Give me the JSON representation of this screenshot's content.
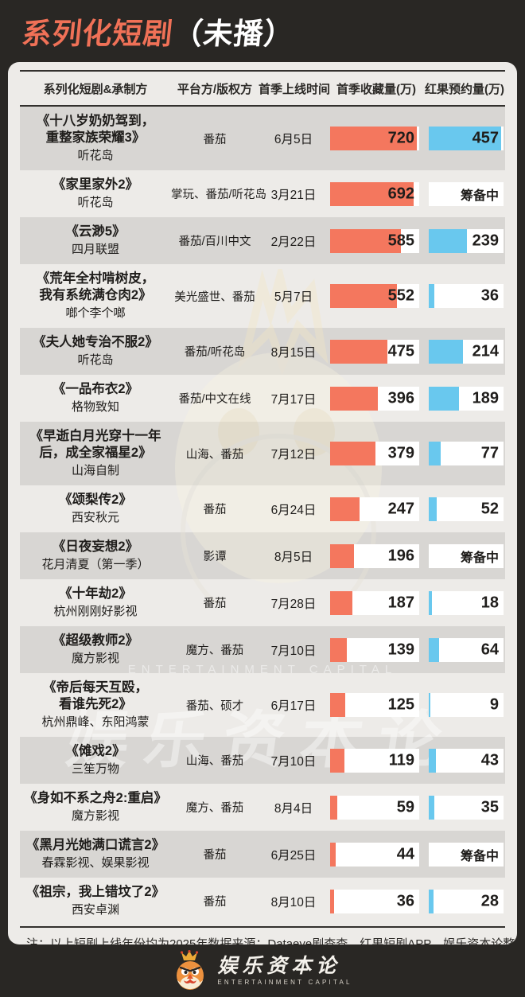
{
  "header": {
    "title_highlight": "系列化短剧",
    "title_rest": "（未播）"
  },
  "table": {
    "columns": [
      "系列化短剧&承制方",
      "平台方/版权方",
      "首季上线时间",
      "首季收藏量(万)",
      "红果预约量(万)"
    ],
    "rows": [
      {
        "title_lines": [
          "《十八岁奶奶驾到，",
          "重整家族荣耀3》"
        ],
        "producer": "听花岛",
        "platform": "番茄",
        "date": "6月5日",
        "collection": 720,
        "reservation": 457
      },
      {
        "title_lines": [
          "《家里家外2》"
        ],
        "producer": "听花岛",
        "platform": "掌玩、番茄/听花岛",
        "date": "3月21日",
        "collection": 692,
        "reservation": "筹备中"
      },
      {
        "title_lines": [
          "《云渺5》"
        ],
        "producer": "四月联盟",
        "platform": "番茄/百川中文",
        "date": "2月22日",
        "collection": 585,
        "reservation": 239
      },
      {
        "title_lines": [
          "《荒年全村啃树皮，",
          "我有系统满仓肉2》"
        ],
        "producer": "啷个李个啷",
        "platform": "美光盛世、番茄",
        "date": "5月7日",
        "collection": 552,
        "reservation": 36
      },
      {
        "title_lines": [
          "《夫人她专治不服2》"
        ],
        "producer": "听花岛",
        "platform": "番茄/听花岛",
        "date": "8月15日",
        "collection": 475,
        "reservation": 214
      },
      {
        "title_lines": [
          "《一品布衣2》"
        ],
        "producer": "格物致知",
        "platform": "番茄/中文在线",
        "date": "7月17日",
        "collection": 396,
        "reservation": 189
      },
      {
        "title_lines": [
          "《早逝白月光穿十一年",
          "后，成全家福星2》"
        ],
        "producer": "山海自制",
        "platform": "山海、番茄",
        "date": "7月12日",
        "collection": 379,
        "reservation": 77
      },
      {
        "title_lines": [
          "《颂梨传2》"
        ],
        "producer": "西安秋元",
        "platform": "番茄",
        "date": "6月24日",
        "collection": 247,
        "reservation": 52
      },
      {
        "title_lines": [
          "《日夜妄想2》"
        ],
        "producer": "花月清夏（第一季）",
        "platform": "影谭",
        "date": "8月5日",
        "collection": 196,
        "reservation": "筹备中"
      },
      {
        "title_lines": [
          "《十年劫2》"
        ],
        "producer": "杭州刚刚好影视",
        "platform": "番茄",
        "date": "7月28日",
        "collection": 187,
        "reservation": 18
      },
      {
        "title_lines": [
          "《超级教师2》"
        ],
        "producer": "魔方影视",
        "platform": "魔方、番茄",
        "date": "7月10日",
        "collection": 139,
        "reservation": 64
      },
      {
        "title_lines": [
          "《帝后每天互殴，",
          "看谁先死2》"
        ],
        "producer": "杭州鼎峰、东阳鸿蒙",
        "platform": "番茄、硕才",
        "date": "6月17日",
        "collection": 125,
        "reservation": 9
      },
      {
        "title_lines": [
          "《傩戏2》"
        ],
        "producer": "三笙万物",
        "platform": "山海、番茄",
        "date": "7月10日",
        "collection": 119,
        "reservation": 43
      },
      {
        "title_lines": [
          "《身如不系之舟2:重启》"
        ],
        "producer": "魔方影视",
        "platform": "魔方、番茄",
        "date": "8月4日",
        "collection": 59,
        "reservation": 35
      },
      {
        "title_lines": [
          "《黑月光她满口谎言2》"
        ],
        "producer": "春霖影视、娱果影视",
        "platform": "番茄",
        "date": "6月25日",
        "collection": 44,
        "reservation": "筹备中"
      },
      {
        "title_lines": [
          "《祖宗，我上错坟了2》"
        ],
        "producer": "西安卓渊",
        "platform": "番茄",
        "date": "8月10日",
        "collection": 36,
        "reservation": 28
      }
    ],
    "pending_label": "筹备中"
  },
  "footer": {
    "note": "注：以上短剧上线年份均为2025年",
    "source": "数据来源：Dataeye剧查查、红果短剧APP，娱乐资本论整理"
  },
  "logo": {
    "name": "娱乐资本论",
    "caption": "ENTERTAINMENT CAPITAL"
  },
  "watermark": {
    "text_cn": "娱乐资本论",
    "text_en": "ENTERTAINMENT CAPITAL"
  },
  "colors": {
    "background": "#292724",
    "title_accent": "#f07157",
    "panel": "#edebe8",
    "row_stripe": "#d8d6d3",
    "bar_collection": "#f4775e",
    "bar_reservation": "#69c8ee",
    "text": "#1f1d1b"
  },
  "chart_data": {
    "type": "bar",
    "title": "系列化短剧（未播）",
    "categories": [
      "十八岁奶奶驾到，重整家族荣耀3",
      "家里家外2",
      "云渺5",
      "荒年全村啃树皮，我有系统满仓肉2",
      "夫人她专治不服2",
      "一品布衣2",
      "早逝白月光穿十一年后，成全家福星2",
      "颂梨传2",
      "日夜妄想2",
      "十年劫2",
      "超级教师2",
      "帝后每天互殴，看谁先死2",
      "傩戏2",
      "身如不系之舟2:重启",
      "黑月光她满口谎言2",
      "祖宗，我上错坟了2"
    ],
    "series": [
      {
        "name": "首季收藏量(万)",
        "values": [
          720,
          692,
          585,
          552,
          475,
          396,
          379,
          247,
          196,
          187,
          139,
          125,
          119,
          59,
          44,
          36
        ]
      },
      {
        "name": "红果预约量(万)",
        "values": [
          457,
          "筹备中",
          239,
          36,
          214,
          189,
          77,
          52,
          "筹备中",
          18,
          64,
          9,
          43,
          35,
          "筹备中",
          28
        ]
      }
    ],
    "collection_axis_max": 740,
    "reservation_axis_max": 470,
    "orientation": "horizontal",
    "legend_position": "column-headers",
    "grid": false
  }
}
